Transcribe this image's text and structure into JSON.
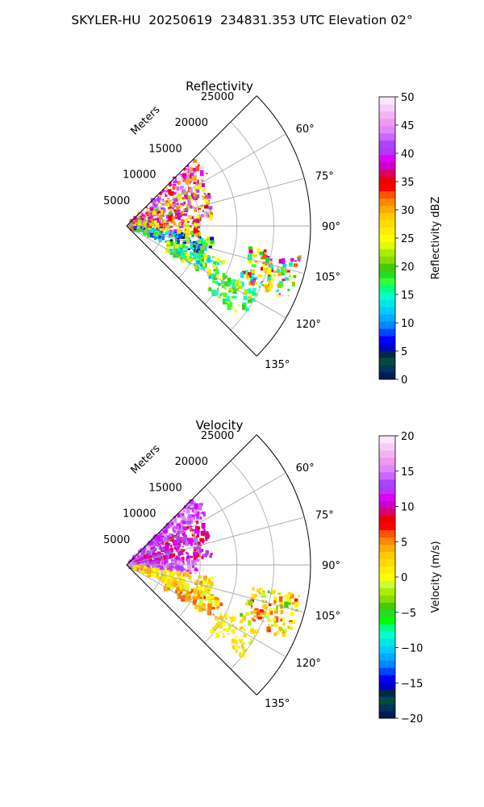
{
  "figure_title": "SKYLER-HU  20250619  234831.353 UTC Elevation 02°",
  "colors": {
    "grid": "#b0b0b0",
    "spoke": "#a8a8a8",
    "reflectivity_cmap": [
      "#001c56",
      "#00335e",
      "#004d3a",
      "#00264a",
      "#0000cc",
      "#0000ff",
      "#0044ff",
      "#0088ff",
      "#00aaff",
      "#00ccff",
      "#00e5e5",
      "#00ffcc",
      "#00ff88",
      "#33ff33",
      "#22dd22",
      "#44cc00",
      "#88dd00",
      "#aaee00",
      "#ddff00",
      "#ffff00",
      "#ffee00",
      "#ffdd00",
      "#ffcc00",
      "#ffaa00",
      "#ff8800",
      "#ff5500",
      "#ff0000",
      "#ee0000",
      "#dd0066",
      "#cc00cc",
      "#dd00ff",
      "#bb33ff",
      "#aa44ff",
      "#cc66ff",
      "#dd88ff",
      "#ee99ee",
      "#f2b3f2",
      "#f8ccf8",
      "#fde6fd"
    ],
    "velocity_cmap": [
      "#001c56",
      "#00335e",
      "#004d3a",
      "#00264a",
      "#0000cc",
      "#0000ff",
      "#0044ff",
      "#0088ff",
      "#00aaff",
      "#00ccff",
      "#00e5e5",
      "#00ffcc",
      "#00ff88",
      "#00ff00",
      "#22dd22",
      "#44cc00",
      "#88dd00",
      "#aaee00",
      "#ccff33",
      "#ffff00",
      "#ffee00",
      "#ffdd00",
      "#ffcc00",
      "#ffaa00",
      "#ff8800",
      "#ff5500",
      "#ff0000",
      "#ee0000",
      "#dd0066",
      "#cc00cc",
      "#dd00ff",
      "#bb33ff",
      "#aa44ff",
      "#cc66ff",
      "#dd88ff",
      "#ee99ee",
      "#f2b3f2",
      "#f8ccf8",
      "#fde6fd"
    ]
  },
  "chart_data": [
    {
      "type": "heatmap",
      "projection": "polar-sector",
      "title": "Reflectivity",
      "range_label": "Meters",
      "range_ticks": [
        5000,
        10000,
        15000,
        20000,
        25000
      ],
      "rmax": 25000,
      "azimuth_range_deg": [
        45,
        135
      ],
      "azimuth_ticks": [
        60,
        75,
        90,
        105,
        120,
        135
      ],
      "azimuth_tick_labels": [
        "60°",
        "75°",
        "90°",
        "105°",
        "120°",
        "135°"
      ],
      "colorbar": {
        "label": "Reflectivity dBZ",
        "vmin": 0,
        "vmax": 50,
        "ticks": [
          0,
          5,
          10,
          15,
          20,
          25,
          30,
          35,
          40,
          45,
          50
        ]
      },
      "echo_regions": [
        {
          "az": [
            45,
            58
          ],
          "r": [
            500,
            13000
          ],
          "value": 42,
          "spread": 14
        },
        {
          "az": [
            58,
            85
          ],
          "r": [
            500,
            12000
          ],
          "value": 32,
          "spread": 12
        },
        {
          "az": [
            85,
            98
          ],
          "r": [
            500,
            10000
          ],
          "value": 30,
          "spread": 10
        },
        {
          "az": [
            98,
            113
          ],
          "r": [
            1000,
            12000
          ],
          "value": 14,
          "spread": 10
        },
        {
          "az": [
            110,
            122
          ],
          "r": [
            6000,
            14000
          ],
          "value": 18,
          "spread": 8
        },
        {
          "az": [
            100,
            115
          ],
          "r": [
            17000,
            24000
          ],
          "value": 26,
          "spread": 14
        },
        {
          "az": [
            116,
            128
          ],
          "r": [
            14000,
            20000
          ],
          "value": 20,
          "spread": 6
        }
      ]
    },
    {
      "type": "heatmap",
      "projection": "polar-sector",
      "title": "Velocity",
      "range_label": "Meters",
      "range_ticks": [
        5000,
        10000,
        15000,
        20000,
        25000
      ],
      "rmax": 25000,
      "azimuth_range_deg": [
        45,
        135
      ],
      "azimuth_ticks": [
        60,
        75,
        90,
        105,
        120,
        135
      ],
      "azimuth_tick_labels": [
        "60°",
        "75°",
        "90°",
        "105°",
        "120°",
        "135°"
      ],
      "colorbar": {
        "label": "Velocity (m/s)",
        "vmin": -20,
        "vmax": 20,
        "ticks": [
          -20,
          -15,
          -10,
          -5,
          0,
          5,
          10,
          15,
          20
        ]
      },
      "echo_regions": [
        {
          "az": [
            45,
            58
          ],
          "r": [
            500,
            13000
          ],
          "value": 14,
          "spread": 3
        },
        {
          "az": [
            58,
            85
          ],
          "r": [
            500,
            12000
          ],
          "value": 11,
          "spread": 3
        },
        {
          "az": [
            85,
            98
          ],
          "r": [
            500,
            10000
          ],
          "value": 14,
          "spread": 3
        },
        {
          "az": [
            98,
            113
          ],
          "r": [
            1000,
            12000
          ],
          "value": 2,
          "spread": 3
        },
        {
          "az": [
            110,
            122
          ],
          "r": [
            6000,
            14000
          ],
          "value": 3,
          "spread": 4
        },
        {
          "az": [
            100,
            115
          ],
          "r": [
            17000,
            24000
          ],
          "value": 2,
          "spread": 6
        },
        {
          "az": [
            116,
            128
          ],
          "r": [
            14000,
            20000
          ],
          "value": 1,
          "spread": 2
        }
      ]
    }
  ]
}
